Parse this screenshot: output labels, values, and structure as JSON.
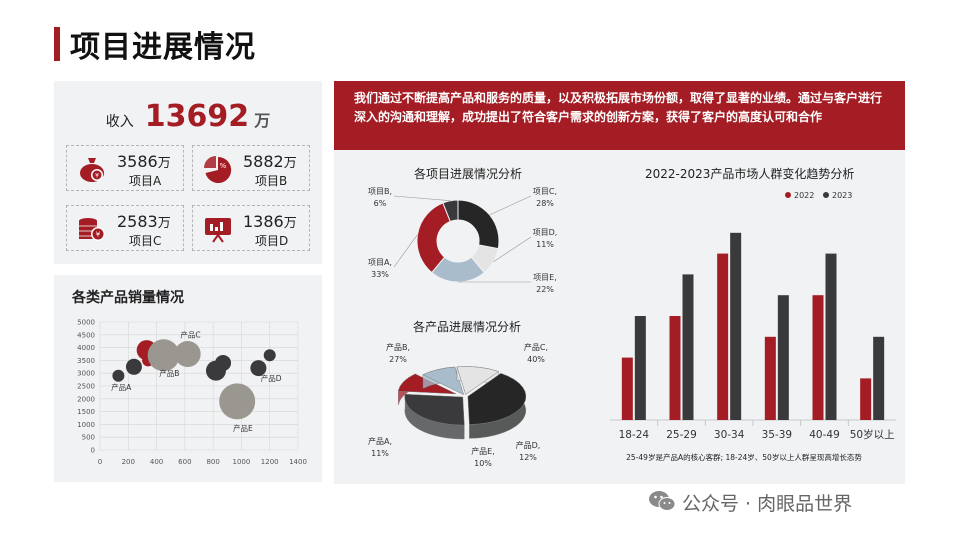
{
  "page": {
    "title": "项目进展情况"
  },
  "income": {
    "label": "收入",
    "value": "13692",
    "unit": "万",
    "items": [
      {
        "value": "3586",
        "unit": "万",
        "name": "项目A",
        "icon": "money-bag-icon"
      },
      {
        "value": "5882",
        "unit": "万",
        "name": "项目B",
        "icon": "pie-percent-icon"
      },
      {
        "value": "2583",
        "unit": "万",
        "name": "项目C",
        "icon": "coin-stack-icon"
      },
      {
        "value": "1386",
        "unit": "万",
        "name": "项目D",
        "icon": "presentation-chart-icon"
      }
    ]
  },
  "banner": {
    "text": "我们通过不断提高产品和服务的质量，以及积极拓展市场份额，取得了显著的业绩。通过与客户进行深入的沟通和理解，成功提出了符合客户需求的创新方案，获得了客户的高度认可和合作"
  },
  "colors": {
    "accent": "#a41c24",
    "dark": "#3a3a3c",
    "gray": "#9a9791",
    "light": "#dcdcdc"
  },
  "watermark": {
    "text": "公众号 · 肉眼品世界",
    "icon": "wechat-icon"
  },
  "chart_data": [
    {
      "type": "scatter",
      "title": "各类产品销量情况",
      "xlim": [
        0,
        1400
      ],
      "ylim": [
        0,
        5000
      ],
      "xticks": [
        0,
        200,
        400,
        600,
        800,
        1000,
        1200,
        1400
      ],
      "yticks": [
        0,
        500,
        1000,
        1500,
        2000,
        2500,
        3000,
        3500,
        4000,
        4500,
        5000
      ],
      "grid": true,
      "points": [
        {
          "x": 130,
          "y": 2900,
          "size": 6,
          "color": "#3a3a3c"
        },
        {
          "x": 240,
          "y": 3250,
          "size": 8,
          "color": "#3a3a3c"
        },
        {
          "x": 330,
          "y": 3900,
          "size": 10,
          "color": "#a41c24"
        },
        {
          "x": 340,
          "y": 3500,
          "size": 6,
          "color": "#a41c24"
        },
        {
          "x": 450,
          "y": 3700,
          "size": 16,
          "color": "#9a9791"
        },
        {
          "x": 620,
          "y": 3750,
          "size": 13,
          "color": "#9a9791"
        },
        {
          "x": 820,
          "y": 3100,
          "size": 10,
          "color": "#3a3a3c"
        },
        {
          "x": 870,
          "y": 3400,
          "size": 8,
          "color": "#3a3a3c"
        },
        {
          "x": 970,
          "y": 1900,
          "size": 18,
          "color": "#9a9791"
        },
        {
          "x": 1120,
          "y": 3200,
          "size": 8,
          "color": "#3a3a3c"
        },
        {
          "x": 1200,
          "y": 3700,
          "size": 6,
          "color": "#3a3a3c"
        }
      ],
      "annotations": [
        {
          "text": "产品A",
          "x": 150,
          "y": 2350
        },
        {
          "text": "产品B",
          "x": 490,
          "y": 2900
        },
        {
          "text": "产品C",
          "x": 640,
          "y": 4400
        },
        {
          "text": "产品D",
          "x": 1210,
          "y": 2700
        },
        {
          "text": "产品E",
          "x": 1010,
          "y": 750
        }
      ]
    },
    {
      "type": "pie",
      "variant": "donut",
      "title": "各项目进展情况分析",
      "labels": [
        "项目A,",
        "项目B,",
        "项目C,",
        "项目D,",
        "项目E,"
      ],
      "values": [
        33,
        6,
        28,
        11,
        22
      ],
      "value_labels": [
        "33%",
        "6%",
        "28%",
        "11%",
        "22%"
      ],
      "colors": [
        "#a41c24",
        "#3a3a3c",
        "#262626",
        "#e4e4e4",
        "#a9bccb"
      ]
    },
    {
      "type": "pie",
      "variant": "3d",
      "title": "各产品进展情况分析",
      "labels": [
        "产品A,",
        "产品B,",
        "产品C,",
        "产品D,",
        "产品E,"
      ],
      "values": [
        11,
        27,
        40,
        12,
        10
      ],
      "value_labels": [
        "11%",
        "27%",
        "40%",
        "12%",
        "10%"
      ],
      "colors": [
        "#a41c24",
        "#3a3a3c",
        "#262626",
        "#e4e4e4",
        "#a9bccb"
      ]
    },
    {
      "type": "bar",
      "title": "2022-2023产品市场人群变化趋势分析",
      "categories": [
        "18-24",
        "25-29",
        "30-34",
        "35-39",
        "40-49",
        "50岁以上"
      ],
      "series": [
        {
          "name": "2022",
          "color": "#a41c24",
          "values": [
            30,
            50,
            80,
            40,
            60,
            20
          ]
        },
        {
          "name": "2023",
          "color": "#3a3a3c",
          "values": [
            50,
            70,
            90,
            60,
            80,
            40
          ]
        }
      ],
      "ylim": [
        0,
        100
      ],
      "legend": "top-right",
      "note": "25-49岁是产品A的核心客群; 18-24岁、50岁以上人群呈现高增长态势"
    }
  ]
}
